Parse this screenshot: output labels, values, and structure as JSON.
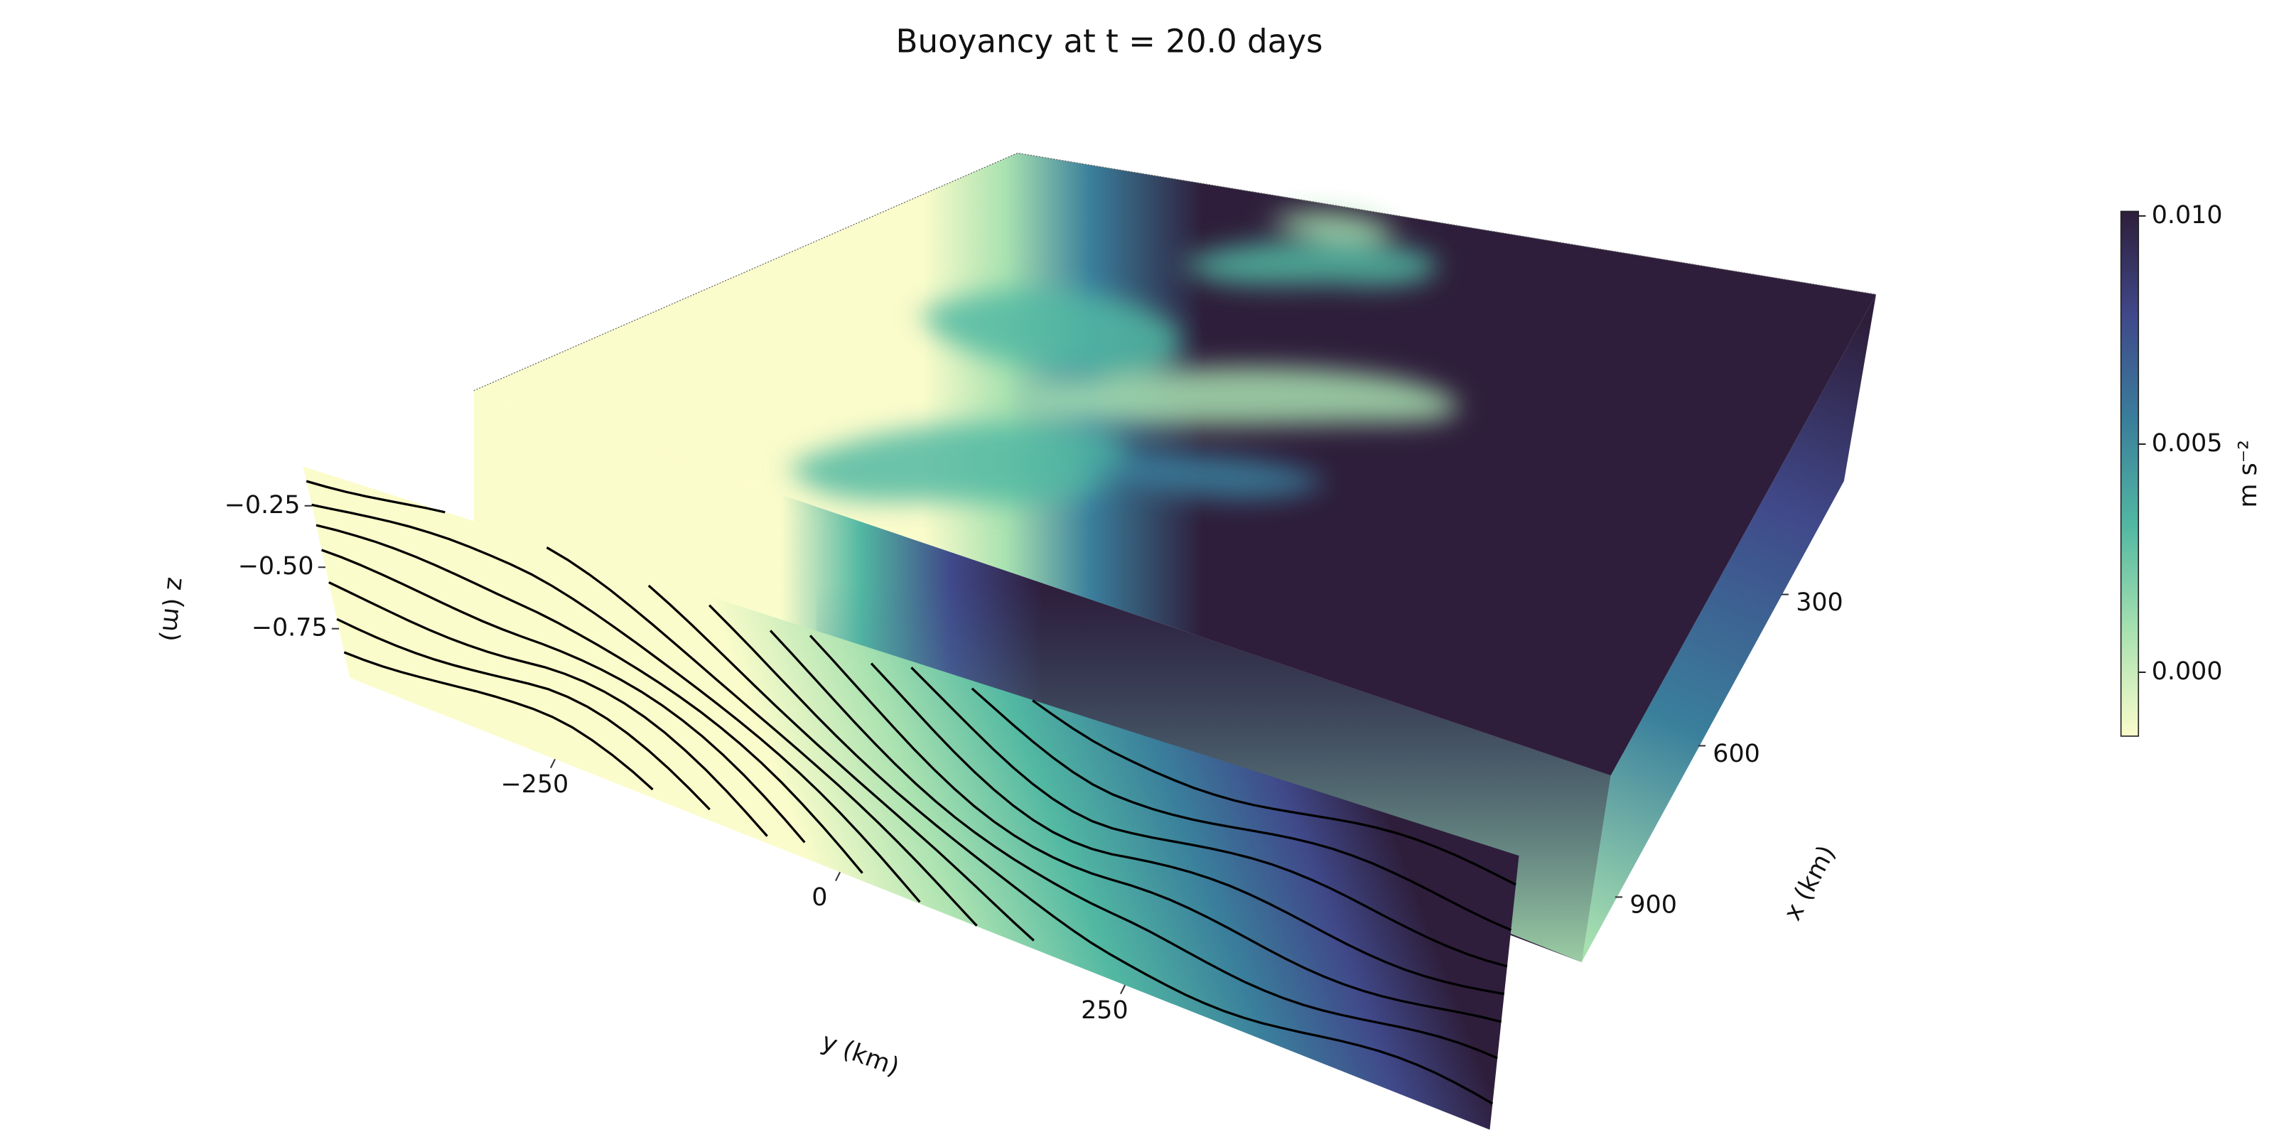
{
  "chart_data": {
    "type": "volume",
    "title": "Buoyancy at t = 20.0 days",
    "xlabel": "x (km)",
    "ylabel": "y (km)",
    "zlabel": "z (m)",
    "xlim": [
      0,
      1000
    ],
    "xticks": [
      300,
      600,
      900
    ],
    "ylim": [
      -430,
      570
    ],
    "yticks": [
      {
        "value": -250,
        "label": "−250"
      },
      0,
      250
    ],
    "zlim": [
      -0.95,
      -0.09
    ],
    "zticks": [
      {
        "value": -0.25,
        "label": "−0.25"
      },
      {
        "value": -0.5,
        "label": "−0.50"
      },
      {
        "value": -0.75,
        "label": "−0.75"
      }
    ],
    "colorbar": {
      "label": "m s⁻²",
      "lim": [
        -0.0014,
        0.0101
      ],
      "ticks": [
        {
          "value": 0,
          "label": "0.000"
        },
        {
          "value": 0.005,
          "label": "0.005"
        },
        {
          "value": 0.01,
          "label": "0.010"
        }
      ],
      "colormap": [
        "#fbfccb",
        "#a8e1b0",
        "#52b8a2",
        "#3a7f9c",
        "#40498a",
        "#2e1e3b"
      ]
    }
  }
}
